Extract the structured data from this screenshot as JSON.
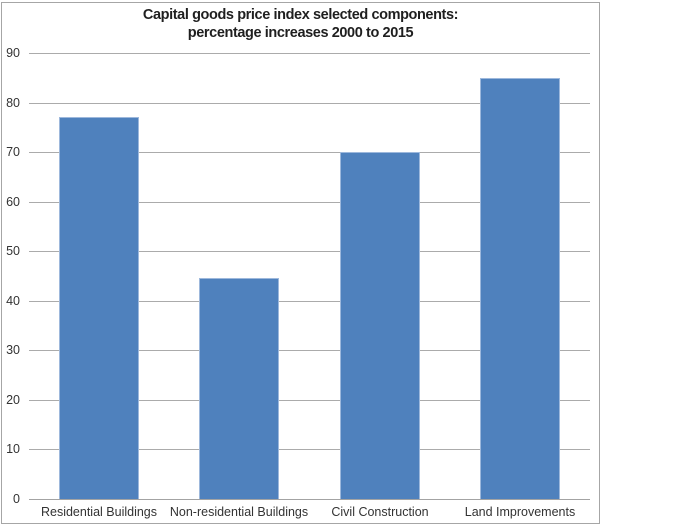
{
  "chart_data": {
    "type": "bar",
    "title": "Capital goods price index selected components: percentage increases 2000 to 2015",
    "title_lines": [
      "Capital goods price index selected components:",
      "percentage increases 2000 to 2015"
    ],
    "categories": [
      "Residential Buildings",
      "Non-residential Buildings",
      "Civil Construction",
      "Land Improvements"
    ],
    "values": [
      77.1,
      44.6,
      70.0,
      85.0
    ],
    "xlabel": "",
    "ylabel": "",
    "ylim": [
      0,
      90
    ],
    "yticks": [
      0,
      10,
      20,
      30,
      40,
      50,
      60,
      70,
      80,
      90
    ],
    "grid": true,
    "legend": false,
    "colors": {
      "bar_fill": "#4F81BD",
      "bar_edge": "#9DB8DC",
      "gridline": "#ABABAB",
      "axis_line": "#A3A3A3",
      "frame_border": "#A6A6A6",
      "title_text": "#1F1F1F",
      "label_text": "#333333",
      "background": "#FFFFFF"
    }
  }
}
